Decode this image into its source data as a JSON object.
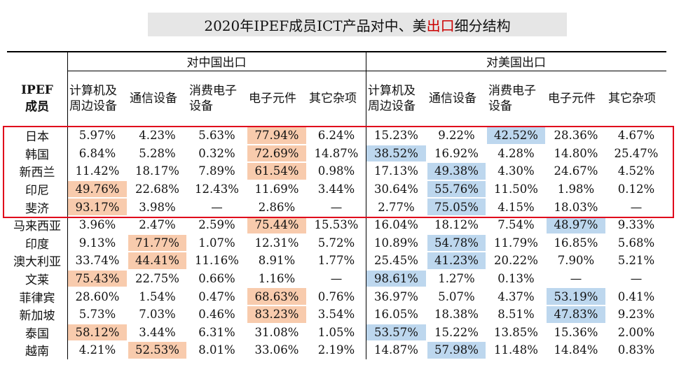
{
  "title": {
    "part1": "2020年IPEF成员ICT产品对中、美",
    "part2": "出口",
    "part3": "细分结构"
  },
  "header": {
    "region_china": "对中国出口",
    "region_us": "对美国出口",
    "member_label": "IPEF\n成员",
    "categories": [
      "计算机及周边设备",
      "通信设备",
      "消费电子设备",
      "电子元件",
      "其它杂项"
    ]
  },
  "rows": [
    {
      "name": "日本",
      "china": [
        "5.97%",
        "4.23%",
        "5.63%",
        "77.94%",
        "6.24%"
      ],
      "us": [
        "15.23%",
        "9.22%",
        "42.52%",
        "28.36%",
        "4.67%"
      ],
      "hl_china": [
        3
      ],
      "hl_us": [
        2
      ]
    },
    {
      "name": "韩国",
      "china": [
        "6.84%",
        "5.28%",
        "0.32%",
        "72.69%",
        "14.87%"
      ],
      "us": [
        "38.52%",
        "16.92%",
        "4.28%",
        "14.80%",
        "25.47%"
      ],
      "hl_china": [
        3
      ],
      "hl_us": [
        0
      ]
    },
    {
      "name": "新西兰",
      "china": [
        "11.42%",
        "18.17%",
        "7.89%",
        "61.54%",
        "0.98%"
      ],
      "us": [
        "17.13%",
        "49.38%",
        "4.30%",
        "24.67%",
        "4.52%"
      ],
      "hl_china": [
        3
      ],
      "hl_us": [
        1
      ]
    },
    {
      "name": "印尼",
      "china": [
        "49.76%",
        "22.68%",
        "12.43%",
        "11.69%",
        "3.44%"
      ],
      "us": [
        "30.64%",
        "55.76%",
        "11.50%",
        "1.98%",
        "0.12%"
      ],
      "hl_china": [
        0
      ],
      "hl_us": [
        1
      ]
    },
    {
      "name": "斐济",
      "china": [
        "93.17%",
        "3.98%",
        "—",
        "2.86%",
        "—"
      ],
      "us": [
        "2.77%",
        "75.05%",
        "4.15%",
        "18.03%",
        "—"
      ],
      "hl_china": [
        0
      ],
      "hl_us": [
        1
      ]
    },
    {
      "name": "马来西亚",
      "china": [
        "3.96%",
        "2.47%",
        "2.59%",
        "75.44%",
        "15.53%"
      ],
      "us": [
        "16.04%",
        "18.12%",
        "7.54%",
        "48.97%",
        "9.33%"
      ],
      "hl_china": [
        3
      ],
      "hl_us": [
        3
      ]
    },
    {
      "name": "印度",
      "china": [
        "9.13%",
        "71.77%",
        "1.07%",
        "12.31%",
        "5.72%"
      ],
      "us": [
        "10.89%",
        "54.78%",
        "11.79%",
        "16.85%",
        "5.68%"
      ],
      "hl_china": [
        1
      ],
      "hl_us": [
        1
      ]
    },
    {
      "name": "澳大利亚",
      "china": [
        "33.74%",
        "44.41%",
        "11.16%",
        "8.91%",
        "1.77%"
      ],
      "us": [
        "25.45%",
        "41.23%",
        "20.22%",
        "7.90%",
        "5.21%"
      ],
      "hl_china": [
        1
      ],
      "hl_us": [
        1
      ]
    },
    {
      "name": "文莱",
      "china": [
        "75.43%",
        "22.75%",
        "0.66%",
        "1.16%",
        "—"
      ],
      "us": [
        "98.61%",
        "1.27%",
        "0.13%",
        "—",
        "—"
      ],
      "hl_china": [
        0
      ],
      "hl_us": [
        0
      ]
    },
    {
      "name": "菲律宾",
      "china": [
        "28.60%",
        "1.54%",
        "0.47%",
        "68.63%",
        "0.76%"
      ],
      "us": [
        "36.97%",
        "5.07%",
        "4.37%",
        "53.19%",
        "0.41%"
      ],
      "hl_china": [
        3
      ],
      "hl_us": [
        3
      ]
    },
    {
      "name": "新加坡",
      "china": [
        "5.73%",
        "7.03%",
        "0.46%",
        "83.23%",
        "3.54%"
      ],
      "us": [
        "16.05%",
        "18.38%",
        "8.51%",
        "47.83%",
        "9.23%"
      ],
      "hl_china": [
        3
      ],
      "hl_us": [
        3
      ]
    },
    {
      "name": "泰国",
      "china": [
        "58.12%",
        "3.44%",
        "6.31%",
        "31.08%",
        "1.05%"
      ],
      "us": [
        "53.57%",
        "15.22%",
        "13.85%",
        "15.36%",
        "2.00%"
      ],
      "hl_china": [
        0
      ],
      "hl_us": [
        0
      ]
    },
    {
      "name": "越南",
      "china": [
        "4.21%",
        "52.53%",
        "8.01%",
        "33.06%",
        "2.19%"
      ],
      "us": [
        "14.87%",
        "57.98%",
        "11.48%",
        "14.84%",
        "0.83%"
      ],
      "hl_china": [
        1
      ],
      "hl_us": [
        1
      ]
    }
  ],
  "colors": {
    "china_highlight": "#f8cbad",
    "us_highlight": "#bdd7ee",
    "outline": "#e0001b"
  }
}
